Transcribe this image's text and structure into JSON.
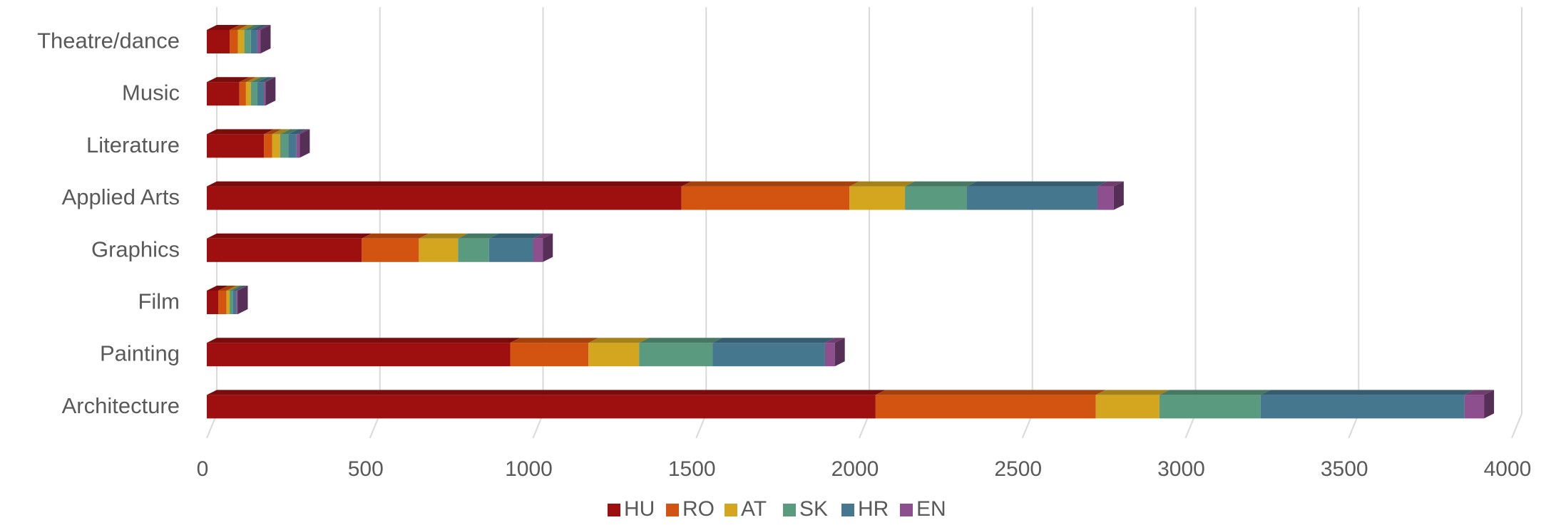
{
  "chart_data": {
    "type": "bar",
    "orientation": "horizontal",
    "stacked": true,
    "categories": [
      "Theatre/dance",
      "Music",
      "Literature",
      "Applied Arts",
      "Graphics",
      "Film",
      "Painting",
      "Architecture"
    ],
    "series": [
      {
        "name": "HU",
        "color": "#9e1010",
        "values": [
          70,
          100,
          175,
          1455,
          475,
          35,
          930,
          2050
        ]
      },
      {
        "name": "RO",
        "color": "#d35410",
        "values": [
          25,
          20,
          25,
          515,
          175,
          25,
          240,
          675
        ]
      },
      {
        "name": "AT",
        "color": "#d4a620",
        "values": [
          20,
          15,
          25,
          170,
          120,
          10,
          155,
          195
        ]
      },
      {
        "name": "SK",
        "color": "#5a9a7e",
        "values": [
          20,
          20,
          25,
          190,
          95,
          10,
          225,
          310
        ]
      },
      {
        "name": "HR",
        "color": "#45778e",
        "values": [
          20,
          20,
          25,
          400,
          135,
          10,
          345,
          625
        ]
      },
      {
        "name": "EN",
        "color": "#8e4f8e",
        "values": [
          10,
          5,
          10,
          50,
          30,
          5,
          30,
          60
        ]
      }
    ],
    "xticks": [
      "0",
      "500",
      "1000",
      "1500",
      "2000",
      "2500",
      "3000",
      "3500",
      "4000"
    ],
    "xlim": [
      0,
      4000
    ],
    "grid": true,
    "legend_position": "bottom",
    "title": "",
    "xlabel": "",
    "ylabel": ""
  }
}
